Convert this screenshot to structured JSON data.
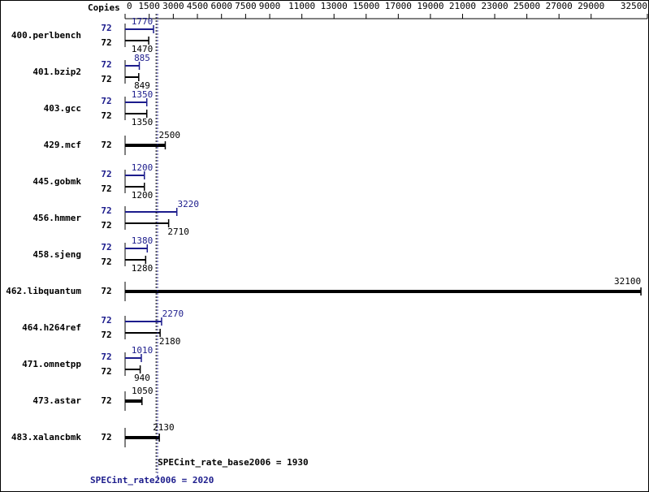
{
  "chart_data": {
    "type": "spec-bar",
    "copies_label": "Copies",
    "categories": [
      "400.perlbench",
      "401.bzip2",
      "403.gcc",
      "429.mcf",
      "445.gobmk",
      "456.hmmer",
      "458.sjeng",
      "462.libquantum",
      "464.h264ref",
      "471.omnetpp",
      "473.astar",
      "483.xalancbmk"
    ],
    "series": [
      {
        "name": "SPECint_rate_base2006 = 1930",
        "mean": 1930,
        "color": "#000000",
        "copies": [
          72,
          72,
          72,
          72,
          72,
          72,
          72,
          72,
          72,
          72,
          72,
          72
        ],
        "values": [
          1470,
          849,
          1350,
          2500,
          1200,
          2710,
          1280,
          32100,
          2180,
          940,
          1050,
          2130
        ]
      },
      {
        "name": "SPECint_rate2006 = 2020",
        "mean": 2020,
        "color": "#1c1c8c",
        "copies": [
          72,
          72,
          72,
          null,
          72,
          72,
          72,
          null,
          72,
          72,
          null,
          null
        ],
        "values": [
          1770,
          885,
          1350,
          null,
          1200,
          3220,
          1380,
          null,
          2270,
          1010,
          null,
          null
        ]
      }
    ],
    "xlim": [
      0,
      32500
    ],
    "xticks": [
      0,
      1500,
      3000,
      4500,
      6000,
      7500,
      9000,
      11000,
      13000,
      15000,
      17000,
      19000,
      21000,
      23000,
      25000,
      27000,
      29000,
      32500
    ]
  }
}
